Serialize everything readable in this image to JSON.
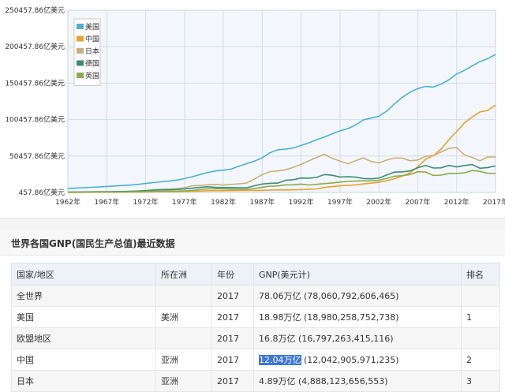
{
  "chart_data": {
    "type": "line",
    "ylim": [
      457.86,
      250457.86
    ],
    "y_ticks": [
      "250457.86亿美元",
      "200457.86亿美元",
      "150457.86亿美元",
      "100457.86亿美元",
      "50457.86亿美元",
      "457.86亿美元"
    ],
    "x_ticks": [
      "1962年",
      "1967年",
      "1972年",
      "1977年",
      "1982年",
      "1987年",
      "1992年",
      "1997年",
      "2002年",
      "2007年",
      "2012年",
      "2017年"
    ],
    "x": [
      1962,
      1963,
      1964,
      1965,
      1966,
      1967,
      1968,
      1969,
      1970,
      1971,
      1972,
      1973,
      1974,
      1975,
      1976,
      1977,
      1978,
      1979,
      1980,
      1981,
      1982,
      1983,
      1984,
      1985,
      1986,
      1987,
      1988,
      1989,
      1990,
      1991,
      1992,
      1993,
      1994,
      1995,
      1996,
      1997,
      1998,
      1999,
      2000,
      2001,
      2002,
      2003,
      2004,
      2005,
      2006,
      2007,
      2008,
      2009,
      2010,
      2011,
      2012,
      2013,
      2014,
      2015,
      2016,
      2017
    ],
    "series": [
      {
        "name": "美国",
        "color": "#4bb0d6",
        "values": [
          6000,
          6500,
          7000,
          7500,
          8000,
          8700,
          9300,
          10000,
          10500,
          11500,
          12800,
          14000,
          15100,
          16000,
          17500,
          19500,
          22000,
          25000,
          28000,
          30000,
          31000,
          32500,
          36500,
          40000,
          43500,
          48000,
          55000,
          59000,
          60000,
          61500,
          65000,
          68500,
          73000,
          76500,
          81000,
          85000,
          88000,
          93000,
          100000,
          102500,
          105000,
          112000,
          122000,
          131000,
          138000,
          143000,
          146000,
          145000,
          149000,
          155000,
          163000,
          168000,
          174000,
          180000,
          184000,
          189800
        ]
      },
      {
        "name": "中国",
        "color": "#e8a030",
        "values": [
          500,
          500,
          600,
          700,
          750,
          800,
          800,
          850,
          950,
          1000,
          1150,
          1400,
          1500,
          1600,
          1700,
          1850,
          2000,
          2300,
          2800,
          2800,
          2850,
          3000,
          3100,
          3200,
          3300,
          3400,
          3700,
          4000,
          3900,
          4000,
          4400,
          4900,
          5300,
          7300,
          8500,
          9600,
          10200,
          10600,
          12100,
          13200,
          14600,
          16500,
          19300,
          22900,
          27500,
          35700,
          45900,
          51000,
          60000,
          73000,
          84000,
          95800,
          104000,
          111000,
          113000,
          120400
        ]
      },
      {
        "name": "日本",
        "color": "#c8b07a",
        "values": [
          600,
          650,
          750,
          900,
          1000,
          1100,
          1300,
          1600,
          1900,
          2300,
          2900,
          4100,
          4700,
          5000,
          5600,
          7000,
          9700,
          10000,
          11000,
          11500,
          10500,
          11500,
          12300,
          13400,
          19000,
          25000,
          29000,
          30000,
          31500,
          35000,
          39000,
          44000,
          48500,
          53000,
          47000,
          43600,
          39700,
          44000,
          48000,
          43000,
          41000,
          44800,
          47600,
          47600,
          44000,
          45000,
          50000,
          51000,
          56000,
          61000,
          62000,
          52000,
          48500,
          44000,
          49000,
          48900
        ]
      },
      {
        "name": "德国",
        "color": "#3e8c78",
        "values": [
          1000,
          1100,
          1200,
          1300,
          1400,
          1500,
          1600,
          1800,
          2100,
          2400,
          2800,
          3600,
          4000,
          4300,
          4600,
          5200,
          6300,
          7400,
          8200,
          7400,
          7200,
          7200,
          6800,
          6900,
          9700,
          12000,
          13000,
          13300,
          17100,
          18000,
          20300,
          20000,
          21100,
          25000,
          24000,
          21700,
          22000,
          21400,
          19600,
          19200,
          20000,
          24400,
          28400,
          28700,
          30000,
          34400,
          37500,
          34000,
          34200,
          37600,
          35400,
          37500,
          38800,
          33700,
          34700,
          36800
        ]
      },
      {
        "name": "英国",
        "color": "#8aab4a",
        "values": [
          800,
          850,
          950,
          1000,
          1100,
          1100,
          1000,
          1100,
          1300,
          1500,
          1700,
          2000,
          2100,
          2400,
          2300,
          2600,
          3300,
          4300,
          5400,
          5500,
          5200,
          4900,
          4700,
          4900,
          6000,
          7600,
          9200,
          9400,
          10900,
          11000,
          11900,
          10700,
          11600,
          12600,
          13500,
          14700,
          15600,
          16000,
          16500,
          16400,
          17200,
          19800,
          22700,
          23500,
          25000,
          28900,
          28500,
          23700,
          24300,
          26300,
          26600,
          27300,
          30700,
          29300,
          26600,
          26600
        ]
      }
    ]
  },
  "section": {
    "title": "世界各国GNP(国民生产总值)最近数据"
  },
  "table": {
    "headers": [
      "国家/地区",
      "所在洲",
      "年份",
      "GNP(美元计)",
      "排名"
    ],
    "rows": [
      {
        "country": "全世界",
        "continent": "",
        "year": "2017",
        "gnp_short": "78.06万亿",
        "gnp_full": "(78,060,792,606,465)",
        "rank": ""
      },
      {
        "country": "美国",
        "continent": "美洲",
        "year": "2017",
        "gnp_short": "18.98万亿",
        "gnp_full": "(18,980,258,752,738)",
        "rank": "1"
      },
      {
        "country": "欧盟地区",
        "continent": "",
        "year": "2017",
        "gnp_short": "16.8万亿",
        "gnp_full": "(16,797,263,415,116)",
        "rank": ""
      },
      {
        "country": "中国",
        "continent": "亚洲",
        "year": "2017",
        "gnp_short": "12.04万亿",
        "gnp_full": "(12,042,905,971,235)",
        "rank": "2",
        "highlight": true
      },
      {
        "country": "日本",
        "continent": "亚洲",
        "year": "2017",
        "gnp_short": "4.89万亿",
        "gnp_full": "(4,888,123,656,553)",
        "rank": "3"
      }
    ]
  }
}
